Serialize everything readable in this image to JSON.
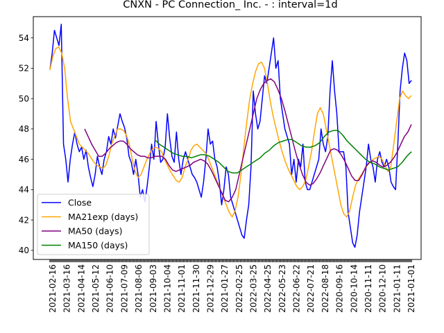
{
  "chart_data": {
    "type": "line",
    "title": "CNXN - PC Connection_ Inc. - : interval=1d",
    "xlabel": "",
    "ylabel": "",
    "ylim": [
      39.4,
      55.4
    ],
    "yticks": [
      40,
      42,
      44,
      46,
      48,
      50,
      52,
      54
    ],
    "xtick_labels": [
      "2021-02-16",
      "2021-03-16",
      "2021-04-14",
      "2021-05-12",
      "2021-06-10",
      "2021-07-09",
      "2021-08-06",
      "2021-09-03",
      "2021-10-04",
      "2021-11-01",
      "2021-11-30",
      "2021-12-29",
      "2021-01-27",
      "2022-02-25",
      "2022-03-25",
      "2022-04-25",
      "2022-05-23",
      "2022-06-22",
      "2022-07-21",
      "2022-08-18",
      "2020-09-16",
      "2020-10-14",
      "2020-11-11",
      "2020-12-10",
      "2021-01-11",
      "2021-01-01"
    ],
    "grid": false,
    "legend_position": "lower-left",
    "series": [
      {
        "name": "Close",
        "color": "#0000ff",
        "values": [
          51.9,
          53.0,
          54.5,
          54.0,
          53.5,
          54.9,
          47.0,
          46.0,
          44.5,
          46.0,
          47.0,
          47.8,
          47.0,
          46.5,
          46.8,
          46.0,
          46.6,
          45.5,
          44.8,
          44.2,
          45.0,
          46.2,
          45.5,
          45.0,
          46.0,
          46.5,
          47.5,
          47.0,
          48.0,
          47.4,
          48.2,
          49.0,
          48.5,
          48.1,
          47.4,
          46.2,
          45.8,
          45.0,
          46.0,
          45.0,
          43.5,
          44.0,
          43.2,
          44.2,
          45.5,
          47.0,
          46.0,
          48.5,
          47.0,
          45.8,
          46.0,
          46.8,
          49.0,
          47.4,
          46.2,
          45.8,
          47.8,
          46.0,
          45.0,
          46.0,
          46.5,
          46.0,
          45.5,
          45.0,
          44.8,
          44.5,
          44.0,
          43.5,
          44.5,
          46.0,
          48.0,
          47.0,
          47.2,
          46.0,
          45.5,
          44.5,
          43.0,
          44.0,
          45.5,
          45.0,
          43.5,
          43.0,
          42.5,
          42.0,
          41.5,
          41.0,
          40.8,
          42.0,
          43.0,
          45.5,
          50.5,
          49.0,
          48.0,
          48.5,
          50.0,
          51.5,
          51.0,
          52.0,
          53.0,
          54.0,
          52.0,
          52.5,
          50.0,
          49.0,
          48.0,
          47.5,
          47.0,
          45.0,
          46.0,
          44.5,
          46.0,
          45.5,
          47.0,
          44.5,
          44.0,
          44.0,
          44.5,
          45.0,
          45.5,
          46.0,
          48.0,
          47.0,
          46.5,
          47.5,
          50.5,
          52.5,
          50.5,
          49.0,
          46.5,
          46.5,
          46.5,
          45.5,
          42.5,
          41.5,
          40.5,
          40.2,
          41.0,
          42.5,
          43.5,
          44.5,
          45.5,
          47.0,
          46.0,
          45.5,
          44.5,
          46.0,
          46.5,
          45.8,
          45.5,
          46.0,
          45.5,
          44.5,
          44.2,
          44.0,
          47.0,
          50.5,
          52.0,
          53.0,
          52.5,
          51.0,
          51.2
        ]
      },
      {
        "name": "MA21exp (days)",
        "color": "#ffa500",
        "values": [
          51.9,
          52.8,
          53.3,
          53.4,
          53.0,
          52.0,
          50.0,
          48.5,
          48.0,
          47.5,
          47.0,
          46.8,
          46.6,
          46.4,
          46.1,
          45.8,
          45.6,
          45.5,
          45.4,
          45.6,
          46.2,
          47.0,
          47.5,
          48.0,
          48.0,
          47.9,
          47.6,
          47.0,
          46.0,
          45.2,
          44.8,
          45.0,
          45.5,
          46.0,
          46.4,
          46.7,
          46.8,
          46.7,
          46.5,
          46.0,
          45.6,
          45.2,
          44.9,
          44.6,
          44.5,
          44.8,
          45.5,
          46.0,
          46.6,
          46.9,
          47.0,
          46.8,
          46.6,
          46.4,
          46.0,
          45.5,
          45.0,
          44.5,
          44.0,
          43.5,
          43.0,
          42.5,
          42.2,
          42.6,
          43.5,
          45.0,
          46.8,
          48.5,
          50.0,
          51.0,
          51.8,
          52.3,
          52.4,
          52.0,
          51.0,
          49.8,
          48.8,
          48.0,
          47.2,
          46.5,
          45.9,
          45.4,
          45.0,
          44.6,
          44.2,
          44.0,
          44.2,
          44.6,
          45.5,
          46.5,
          47.8,
          49.0,
          49.4,
          49.0,
          48.0,
          47.0,
          46.0,
          45.0,
          44.0,
          43.0,
          42.4,
          42.2,
          42.6,
          43.5,
          44.3,
          44.7,
          45.0,
          45.3,
          45.6,
          45.8,
          46.0,
          46.1,
          46.2,
          46.0,
          45.6,
          45.2,
          45.5,
          47.0,
          48.5,
          50.0,
          50.5,
          50.2,
          50.0,
          50.2
        ]
      },
      {
        "name": "MA50 (days)",
        "color": "#800080",
        "values": [
          48.0,
          47.5,
          47.0,
          46.6,
          46.2,
          46.2,
          46.4,
          46.7,
          46.9,
          47.1,
          47.2,
          47.2,
          47.0,
          46.7,
          46.5,
          46.3,
          46.2,
          46.2,
          46.1,
          46.1,
          46.2,
          46.2,
          46.2,
          46.0,
          45.6,
          45.3,
          45.2,
          45.3,
          45.4,
          45.5,
          45.6,
          45.8,
          45.9,
          46.0,
          45.9,
          45.7,
          45.3,
          44.8,
          44.3,
          43.8,
          43.3,
          43.2,
          43.5,
          44.0,
          45.0,
          46.0,
          47.0,
          48.0,
          49.0,
          50.0,
          50.6,
          51.0,
          51.2,
          51.3,
          51.1,
          50.6,
          50.0,
          49.2,
          48.3,
          47.4,
          46.5,
          45.7,
          45.0,
          44.5,
          44.3,
          44.4,
          44.7,
          45.1,
          45.6,
          46.1,
          46.6,
          46.7,
          46.6,
          46.3,
          45.9,
          45.4,
          44.9,
          44.6,
          44.6,
          45.0,
          45.5,
          45.8,
          45.9,
          45.8,
          45.6,
          45.5,
          45.6,
          45.8,
          46.1,
          46.5,
          47.0,
          47.5,
          47.8,
          48.3
        ]
      },
      {
        "name": "MA150 (days)",
        "color": "#008000",
        "values": [
          47.3,
          47.0,
          46.8,
          46.6,
          46.4,
          46.3,
          46.2,
          46.2,
          46.1,
          46.2,
          46.3,
          46.3,
          46.2,
          46.0,
          45.8,
          45.5,
          45.2,
          45.1,
          45.1,
          45.3,
          45.5,
          45.7,
          45.9,
          46.1,
          46.4,
          46.6,
          46.9,
          47.1,
          47.2,
          47.3,
          47.3,
          47.1,
          46.9,
          46.8,
          46.8,
          46.9,
          47.1,
          47.5,
          47.8,
          47.9,
          47.9,
          47.6,
          47.2,
          46.9,
          46.6,
          46.3,
          46.0,
          45.8,
          45.7,
          45.5,
          45.4,
          45.3,
          45.4,
          45.5,
          45.8,
          46.2,
          46.5
        ]
      }
    ]
  }
}
